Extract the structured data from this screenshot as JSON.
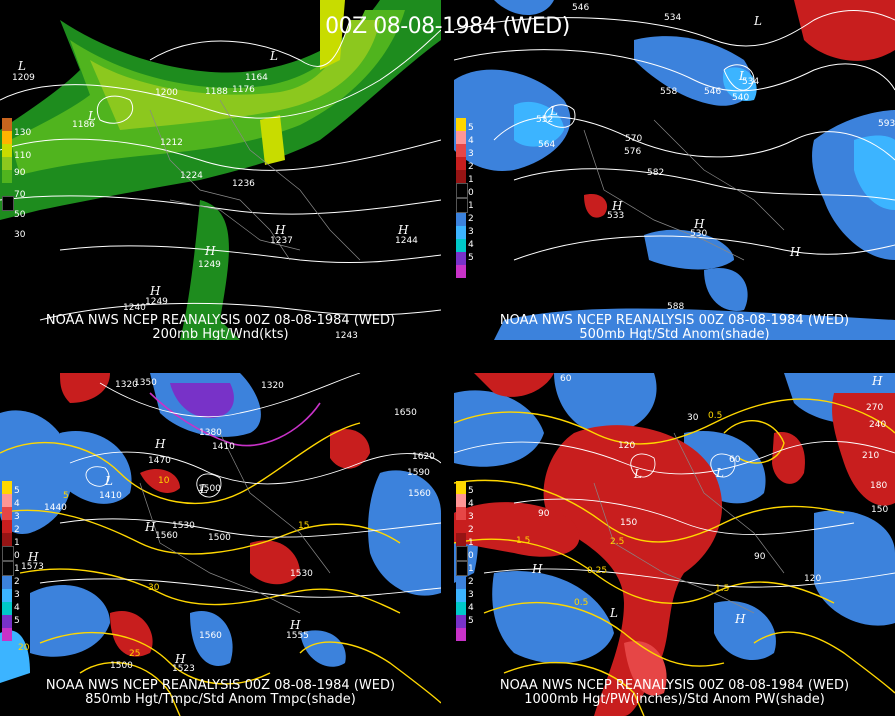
{
  "title": "00Z 08-08-1984 (WED)",
  "panels": [
    {
      "line1": "NOAA NWS NCEP REANALYSIS 00Z 08-08-1984 (WED)",
      "line2": "200mb Hgt/Wnd(kts)",
      "legend_labels": [
        "130",
        "110",
        "90",
        "70",
        "50",
        "30"
      ],
      "legend_colors": [
        "#c8641e",
        "#ffb400",
        "#c8dc00",
        "#8cc81e",
        "#50b41e",
        "#1e8c1e",
        "#000000"
      ],
      "contour_labels": [
        "1209",
        "1188",
        "1176",
        "1164",
        "1200",
        "1186",
        "1212",
        "1224",
        "1236",
        "1237",
        "1244",
        "1249",
        "1240",
        "1249",
        "1243"
      ],
      "pressure_marks": [
        "L",
        "L",
        "L",
        "H",
        "H",
        "H",
        "H"
      ]
    },
    {
      "line1": "NOAA NWS NCEP REANALYSIS 00Z 08-08-1984 (WED)",
      "line2": "500mb Hgt/Std Anom(shade)",
      "legend_labels": [
        "5",
        "4",
        "3",
        "2",
        "1",
        "0",
        "1",
        "2",
        "3",
        "4",
        "5"
      ],
      "legend_colors": [
        "#ffd700",
        "#ff9696",
        "#e64646",
        "#c81e1e",
        "#961414",
        "#000000",
        "#000000",
        "#3c82dc",
        "#3cb4ff",
        "#00c8c8",
        "#7832c8",
        "#c832c8"
      ],
      "contour_labels": [
        "546",
        "534",
        "552",
        "564",
        "558",
        "546",
        "540",
        "534",
        "570",
        "576",
        "582",
        "588",
        "533",
        "530",
        "593"
      ],
      "pressure_marks": [
        "L",
        "L",
        "L",
        "H",
        "H",
        "H"
      ]
    },
    {
      "line1": "NOAA NWS NCEP REANALYSIS 00Z 08-08-1984 (WED)",
      "line2": "850mb Hgt/Tmpc/Std Anom Tmpc(shade)",
      "legend_labels": [
        "5",
        "4",
        "3",
        "2",
        "1",
        "0",
        "1",
        "2",
        "3",
        "4",
        "5"
      ],
      "legend_colors": [
        "#ffd700",
        "#ff9696",
        "#e64646",
        "#c81e1e",
        "#961414",
        "#000000",
        "#000000",
        "#3c82dc",
        "#3cb4ff",
        "#00c8c8",
        "#7832c8",
        "#c832c8"
      ],
      "contour_labels": [
        "1320",
        "1350",
        "1380",
        "1410",
        "1320",
        "1650",
        "1620",
        "1590",
        "1560",
        "1470",
        "1440",
        "1410",
        "1500",
        "1530",
        "1560",
        "1500",
        "1530",
        "1500",
        "1560",
        "1555",
        "1573",
        "1523",
        "20",
        "25",
        "30",
        "15",
        "10",
        "5"
      ],
      "pressure_marks": [
        "L",
        "L",
        "H",
        "H",
        "H",
        "H",
        "H"
      ]
    },
    {
      "line1": "NOAA NWS NCEP REANALYSIS 00Z 08-08-1984 (WED)",
      "line2": "1000mb Hgt/PW(inches)/Std Anom PW(shade)",
      "legend_labels": [
        "5",
        "4",
        "3",
        "2",
        "1",
        "0",
        "1",
        "2",
        "3",
        "4",
        "5"
      ],
      "legend_colors": [
        "#ffd700",
        "#ff9696",
        "#e64646",
        "#c81e1e",
        "#961414",
        "#000000",
        "#000000",
        "#3c82dc",
        "#3cb4ff",
        "#00c8c8",
        "#7832c8",
        "#c832c8"
      ],
      "contour_labels": [
        "60",
        "90",
        "120",
        "150",
        "30",
        "0.5",
        "1.5",
        "2.5",
        "270",
        "240",
        "210",
        "180",
        "150",
        "120",
        "90",
        "60",
        "1.5",
        "0.5",
        "0.25"
      ],
      "pressure_marks": [
        "L",
        "L",
        "L",
        "H",
        "H",
        "H"
      ]
    }
  ]
}
